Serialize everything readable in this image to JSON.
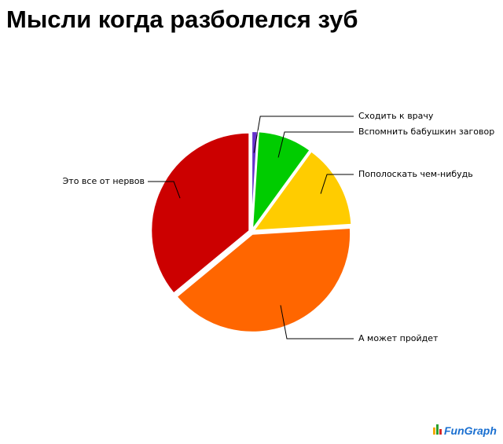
{
  "chart_data": {
    "type": "pie",
    "title": "Мысли когда разболелся зуб",
    "categories": [
      "Сходить к врачу",
      "Вспомнить бабушкин заговор",
      "Пополоскать чем-нибудь",
      "А может пройдет",
      "Это все от нервов"
    ],
    "values": [
      1,
      9,
      14,
      40,
      36
    ],
    "colors": [
      "#6633cc",
      "#00cc00",
      "#ffcc00",
      "#ff6600",
      "#cc0000"
    ],
    "logo": "FunGraph"
  }
}
